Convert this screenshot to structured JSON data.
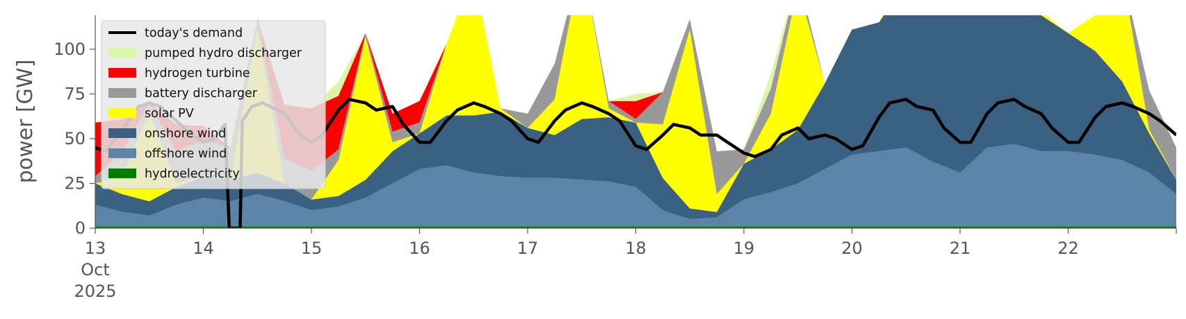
{
  "chart_data": {
    "type": "area",
    "ylabel": "power [GW]",
    "ylim": [
      0,
      119
    ],
    "yticks": [
      0,
      25,
      50,
      75,
      100
    ],
    "xlim": [
      13,
      23
    ],
    "xticks": [
      {
        "value": 13,
        "label": "13",
        "sub": [
          "Oct",
          "2025"
        ]
      },
      {
        "value": 14,
        "label": "14"
      },
      {
        "value": 15,
        "label": "15"
      },
      {
        "value": 16,
        "label": "16"
      },
      {
        "value": 17,
        "label": "17"
      },
      {
        "value": 18,
        "label": "18"
      },
      {
        "value": 19,
        "label": "19"
      },
      {
        "value": 20,
        "label": "20"
      },
      {
        "value": 21,
        "label": "21"
      },
      {
        "value": 22,
        "label": "22"
      }
    ],
    "legend_position": "top-left",
    "legend": [
      {
        "label": "today's demand",
        "color": "#000000",
        "kind": "line"
      },
      {
        "label": "pumped hydro discharger",
        "color": "#d9f7a6",
        "kind": "patch"
      },
      {
        "label": "hydrogen turbine",
        "color": "#ff0000",
        "kind": "patch"
      },
      {
        "label": "battery discharger",
        "color": "#999999",
        "kind": "patch"
      },
      {
        "label": "solar PV",
        "color": "#ffff00",
        "kind": "patch"
      },
      {
        "label": "onshore wind",
        "color": "#3b6182",
        "kind": "patch"
      },
      {
        "label": "offshore wind",
        "color": "#5b84a8",
        "kind": "patch"
      },
      {
        "label": "hydroelectricity",
        "color": "#008000",
        "kind": "patch"
      }
    ],
    "x": [
      13.0,
      13.25,
      13.5,
      13.75,
      14.0,
      14.25,
      14.5,
      14.75,
      15.0,
      15.25,
      15.5,
      15.75,
      16.0,
      16.25,
      16.5,
      16.75,
      17.0,
      17.25,
      17.5,
      17.75,
      18.0,
      18.25,
      18.5,
      18.75,
      19.0,
      19.25,
      19.5,
      19.75,
      20.0,
      20.25,
      20.5,
      20.75,
      21.0,
      21.25,
      21.5,
      21.75,
      22.0,
      22.25,
      22.5,
      22.75,
      23.0
    ],
    "series": [
      {
        "name": "hydroelectricity",
        "color": "#008000",
        "values": [
          1,
          1,
          1,
          1,
          1,
          1,
          1,
          1,
          1,
          1,
          1,
          1,
          1,
          1,
          1,
          1,
          1,
          1,
          1,
          1,
          1,
          1,
          1,
          1,
          1,
          1,
          1,
          1,
          1,
          1,
          1,
          1,
          1,
          1,
          1,
          1,
          1,
          1,
          1,
          1,
          1
        ]
      },
      {
        "name": "offshore wind",
        "color": "#5b84a8",
        "values": [
          12,
          8,
          6,
          12,
          16,
          14,
          18,
          14,
          9,
          11,
          16,
          24,
          32,
          34,
          30,
          28,
          27,
          27,
          26,
          25,
          22,
          9,
          4,
          5,
          15,
          19,
          24,
          32,
          40,
          42,
          44,
          36,
          30,
          44,
          46,
          42,
          42,
          40,
          37,
          30,
          18
        ]
      },
      {
        "name": "onshore wind",
        "color": "#3b6182",
        "values": [
          12,
          10,
          8,
          10,
          12,
          12,
          12,
          10,
          6,
          6,
          10,
          18,
          20,
          28,
          32,
          36,
          28,
          24,
          34,
          36,
          36,
          18,
          6,
          3,
          20,
          24,
          30,
          48,
          70,
          72,
          92,
          88,
          88,
          76,
          74,
          76,
          66,
          58,
          44,
          22,
          8
        ]
      },
      {
        "name": "solar PV",
        "color": "#ffff00",
        "values": [
          0,
          10,
          50,
          2,
          0,
          0,
          80,
          0,
          0,
          20,
          80,
          5,
          0,
          40,
          80,
          2,
          0,
          20,
          90,
          5,
          0,
          30,
          100,
          10,
          0,
          20,
          80,
          0,
          0,
          0,
          10,
          0,
          0,
          5,
          30,
          2,
          0,
          20,
          60,
          2,
          0
        ]
      },
      {
        "name": "battery discharger",
        "color": "#999999",
        "values": [
          4,
          14,
          5,
          18,
          20,
          18,
          6,
          14,
          16,
          6,
          2,
          6,
          6,
          0,
          0,
          0,
          8,
          20,
          0,
          4,
          2,
          18,
          6,
          24,
          8,
          14,
          6,
          0,
          0,
          0,
          0,
          0,
          0,
          0,
          0,
          0,
          0,
          0,
          0,
          22,
          18
        ]
      },
      {
        "name": "hydrogen turbine",
        "color": "#ff0000",
        "values": [
          30,
          18,
          0,
          15,
          8,
          0,
          0,
          30,
          35,
          30,
          0,
          10,
          12,
          0,
          0,
          0,
          0,
          0,
          0,
          0,
          10,
          0,
          0,
          0,
          0,
          0,
          0,
          0,
          0,
          0,
          0,
          0,
          0,
          0,
          0,
          0,
          0,
          0,
          0,
          0,
          0
        ]
      },
      {
        "name": "pumped hydro discharger",
        "color": "#d9f7a6",
        "values": [
          0,
          2,
          0,
          0,
          0,
          0,
          0,
          0,
          0,
          8,
          0,
          0,
          0,
          0,
          0,
          0,
          0,
          0,
          0,
          0,
          4,
          0,
          0,
          0,
          0,
          8,
          0,
          0,
          0,
          0,
          0,
          0,
          0,
          0,
          0,
          0,
          0,
          0,
          0,
          0,
          0
        ]
      }
    ],
    "demand": {
      "name": "today's demand",
      "color": "#000000",
      "x": [
        13.0,
        13.1,
        13.25,
        13.4,
        13.5,
        13.6,
        13.75,
        13.9,
        14.0,
        14.1,
        14.2,
        14.24,
        14.26,
        14.3,
        14.34,
        14.36,
        14.45,
        14.55,
        14.75,
        14.9,
        15.0,
        15.1,
        15.25,
        15.35,
        15.5,
        15.6,
        15.75,
        15.85,
        16.0,
        16.1,
        16.25,
        16.35,
        16.5,
        16.6,
        16.75,
        16.85,
        17.0,
        17.1,
        17.25,
        17.35,
        17.5,
        17.6,
        17.75,
        17.85,
        18.0,
        18.1,
        18.25,
        18.35,
        18.5,
        18.6,
        18.75,
        18.85,
        19.0,
        19.1,
        19.25,
        19.35,
        19.5,
        19.6,
        19.75,
        19.85,
        20.0,
        20.1,
        20.25,
        20.35,
        20.5,
        20.6,
        20.75,
        20.85,
        21.0,
        21.1,
        21.25,
        21.35,
        21.5,
        21.6,
        21.75,
        21.85,
        22.0,
        22.1,
        22.25,
        22.35,
        22.5,
        22.6,
        22.75,
        22.85,
        23.0
      ],
      "values": [
        45,
        43,
        55,
        68,
        70,
        68,
        60,
        52,
        48,
        50,
        58,
        0,
        0,
        0,
        0,
        60,
        68,
        70,
        64,
        52,
        48,
        52,
        66,
        72,
        70,
        66,
        68,
        58,
        48,
        48,
        60,
        66,
        70,
        68,
        64,
        60,
        50,
        48,
        60,
        66,
        70,
        68,
        64,
        60,
        46,
        44,
        52,
        58,
        56,
        52,
        52,
        48,
        42,
        40,
        44,
        52,
        56,
        50,
        52,
        50,
        44,
        46,
        62,
        70,
        72,
        68,
        66,
        56,
        48,
        48,
        64,
        70,
        72,
        68,
        64,
        56,
        48,
        48,
        62,
        68,
        70,
        68,
        64,
        60,
        52
      ]
    }
  }
}
